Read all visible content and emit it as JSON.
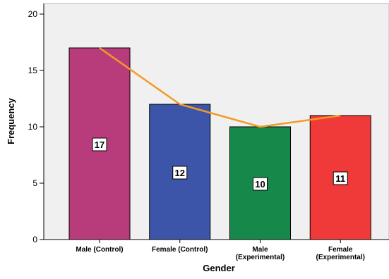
{
  "chart_data": {
    "type": "bar",
    "title": "",
    "xlabel": "Gender",
    "ylabel": "Frequency",
    "categories": [
      "Male (Control)",
      "Female (Control)",
      "Male\n(Experimental)",
      "Female\n(Experimental)"
    ],
    "values": [
      17,
      12,
      10,
      11
    ],
    "ylim": [
      0,
      20
    ],
    "yticks": [
      0,
      5,
      10,
      15,
      20
    ],
    "grid": false,
    "legend": "none",
    "bar_colors": [
      "#b83c7c",
      "#3c55a8",
      "#16884a",
      "#f03a3a"
    ],
    "line_color": "#f39a26",
    "plot_background": "#f0f0f0",
    "data_labels": [
      "17",
      "12",
      "10",
      "11"
    ]
  }
}
